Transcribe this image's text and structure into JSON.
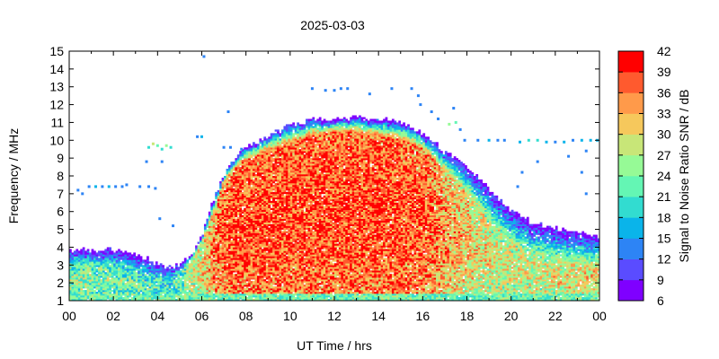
{
  "chart_data": {
    "type": "heatmap",
    "title": "2025-03-03",
    "xlabel": "UT Time / hrs",
    "ylabel": "Frequency / MHz",
    "colorbar_label": "Signal to Noise Ratio SNR / dB",
    "xlim": [
      0,
      24
    ],
    "ylim": [
      1,
      15
    ],
    "x_tick_labels": [
      "00",
      "02",
      "04",
      "06",
      "08",
      "10",
      "12",
      "14",
      "16",
      "18",
      "20",
      "22",
      "00"
    ],
    "y_ticks": [
      1,
      2,
      3,
      4,
      5,
      6,
      7,
      8,
      9,
      10,
      11,
      12,
      13,
      14,
      15
    ],
    "colorbar_ticks": [
      6,
      9,
      12,
      15,
      18,
      21,
      24,
      27,
      30,
      33,
      36,
      39,
      42
    ],
    "colorbar_range": [
      6,
      42
    ],
    "colorbar_colors": [
      "#7f00ff",
      "#5a4cff",
      "#2d84f5",
      "#0ab4ea",
      "#32dcd0",
      "#64f6b4",
      "#96fa96",
      "#c8e678",
      "#f6c85c",
      "#ff9a4a",
      "#ff5a2e",
      "#ff0000"
    ],
    "envelope": {
      "description_points_hours": [
        0,
        1,
        2,
        3,
        3.5,
        4,
        4.5,
        5,
        5.5,
        6,
        6.5,
        7,
        7.5,
        8,
        9,
        10,
        11,
        12,
        13,
        14,
        15,
        16,
        17,
        18,
        19,
        20,
        21,
        22,
        23,
        24
      ],
      "upper_mhz": [
        3.8,
        3.8,
        3.8,
        3.6,
        3.3,
        3.0,
        2.8,
        3.0,
        3.5,
        4.5,
        6.5,
        8.0,
        9.0,
        9.5,
        10.2,
        10.8,
        11.1,
        11.2,
        11.2,
        11.1,
        11.0,
        10.4,
        9.3,
        8.5,
        7.2,
        6.0,
        5.3,
        5.0,
        4.8,
        4.6
      ],
      "core_upper_mhz": [
        3.0,
        3.0,
        2.9,
        2.7,
        2.5,
        2.3,
        2.2,
        2.5,
        3.2,
        4.2,
        5.8,
        7.6,
        8.4,
        8.8,
        9.4,
        9.8,
        10.2,
        10.4,
        10.4,
        10.2,
        10.0,
        9.5,
        8.2,
        7.0,
        5.5,
        4.2,
        3.6,
        3.2,
        3.0,
        3.0
      ],
      "peak_snr_db": [
        28,
        28,
        27,
        26,
        25,
        24,
        24,
        26,
        30,
        34,
        38,
        41,
        42,
        42,
        42,
        42,
        42,
        42,
        42,
        42,
        42,
        41,
        38,
        35,
        33,
        32,
        32,
        33,
        34,
        34
      ]
    },
    "sparse_points": [
      {
        "x": 0.4,
        "y": 7.2,
        "snr": 14
      },
      {
        "x": 0.6,
        "y": 7.0,
        "snr": 13
      },
      {
        "x": 0.9,
        "y": 7.4,
        "snr": 14
      },
      {
        "x": 1.2,
        "y": 7.4,
        "snr": 15
      },
      {
        "x": 1.5,
        "y": 7.4,
        "snr": 14
      },
      {
        "x": 1.8,
        "y": 7.4,
        "snr": 15
      },
      {
        "x": 2.1,
        "y": 7.4,
        "snr": 14
      },
      {
        "x": 2.4,
        "y": 7.4,
        "snr": 13
      },
      {
        "x": 2.6,
        "y": 7.5,
        "snr": 14
      },
      {
        "x": 3.2,
        "y": 7.4,
        "snr": 14
      },
      {
        "x": 3.6,
        "y": 7.4,
        "snr": 13
      },
      {
        "x": 3.9,
        "y": 7.3,
        "snr": 14
      },
      {
        "x": 4.2,
        "y": 8.8,
        "snr": 13
      },
      {
        "x": 3.5,
        "y": 8.8,
        "snr": 14
      },
      {
        "x": 3.6,
        "y": 9.6,
        "snr": 20
      },
      {
        "x": 3.8,
        "y": 9.8,
        "snr": 27
      },
      {
        "x": 4.0,
        "y": 9.7,
        "snr": 22
      },
      {
        "x": 4.2,
        "y": 9.5,
        "snr": 18
      },
      {
        "x": 4.4,
        "y": 9.7,
        "snr": 24
      },
      {
        "x": 4.6,
        "y": 9.6,
        "snr": 20
      },
      {
        "x": 4.1,
        "y": 5.6,
        "snr": 14
      },
      {
        "x": 4.7,
        "y": 5.2,
        "snr": 13
      },
      {
        "x": 5.8,
        "y": 10.2,
        "snr": 14
      },
      {
        "x": 6.0,
        "y": 10.2,
        "snr": 15
      },
      {
        "x": 6.1,
        "y": 14.7,
        "snr": 14
      },
      {
        "x": 7.2,
        "y": 11.6,
        "snr": 14
      },
      {
        "x": 7.0,
        "y": 9.6,
        "snr": 14
      },
      {
        "x": 7.3,
        "y": 9.6,
        "snr": 13
      },
      {
        "x": 7.8,
        "y": 9.5,
        "snr": 14
      },
      {
        "x": 11.0,
        "y": 12.9,
        "snr": 14
      },
      {
        "x": 11.6,
        "y": 12.8,
        "snr": 13
      },
      {
        "x": 12.0,
        "y": 12.8,
        "snr": 14
      },
      {
        "x": 12.3,
        "y": 12.9,
        "snr": 14
      },
      {
        "x": 12.6,
        "y": 12.9,
        "snr": 13
      },
      {
        "x": 13.6,
        "y": 12.6,
        "snr": 14
      },
      {
        "x": 14.6,
        "y": 12.9,
        "snr": 14
      },
      {
        "x": 15.5,
        "y": 12.9,
        "snr": 13
      },
      {
        "x": 15.8,
        "y": 12.5,
        "snr": 14
      },
      {
        "x": 15.9,
        "y": 12.0,
        "snr": 14
      },
      {
        "x": 16.4,
        "y": 11.6,
        "snr": 14
      },
      {
        "x": 16.7,
        "y": 11.2,
        "snr": 13
      },
      {
        "x": 17.2,
        "y": 10.9,
        "snr": 24
      },
      {
        "x": 17.5,
        "y": 11.0,
        "snr": 22
      },
      {
        "x": 17.7,
        "y": 10.6,
        "snr": 14
      },
      {
        "x": 17.9,
        "y": 10.0,
        "snr": 13
      },
      {
        "x": 17.4,
        "y": 11.8,
        "snr": 14
      },
      {
        "x": 18.5,
        "y": 10.0,
        "snr": 14
      },
      {
        "x": 19.0,
        "y": 10.0,
        "snr": 15
      },
      {
        "x": 19.4,
        "y": 10.0,
        "snr": 14
      },
      {
        "x": 19.7,
        "y": 10.0,
        "snr": 14
      },
      {
        "x": 20.4,
        "y": 9.9,
        "snr": 16
      },
      {
        "x": 20.8,
        "y": 10.0,
        "snr": 20
      },
      {
        "x": 21.2,
        "y": 10.0,
        "snr": 18
      },
      {
        "x": 21.6,
        "y": 9.9,
        "snr": 15
      },
      {
        "x": 22.0,
        "y": 9.9,
        "snr": 14
      },
      {
        "x": 22.4,
        "y": 9.9,
        "snr": 15
      },
      {
        "x": 22.8,
        "y": 10.0,
        "snr": 14
      },
      {
        "x": 23.2,
        "y": 10.0,
        "snr": 15
      },
      {
        "x": 23.6,
        "y": 10.0,
        "snr": 16
      },
      {
        "x": 23.9,
        "y": 10.0,
        "snr": 15
      },
      {
        "x": 22.6,
        "y": 9.1,
        "snr": 14
      },
      {
        "x": 23.4,
        "y": 9.4,
        "snr": 13
      },
      {
        "x": 23.2,
        "y": 8.2,
        "snr": 14
      },
      {
        "x": 20.5,
        "y": 8.2,
        "snr": 13
      },
      {
        "x": 20.3,
        "y": 7.4,
        "snr": 14
      },
      {
        "x": 18.5,
        "y": 7.0,
        "snr": 13
      },
      {
        "x": 23.4,
        "y": 7.0,
        "snr": 14
      },
      {
        "x": 21.2,
        "y": 8.8,
        "snr": 14
      }
    ]
  }
}
